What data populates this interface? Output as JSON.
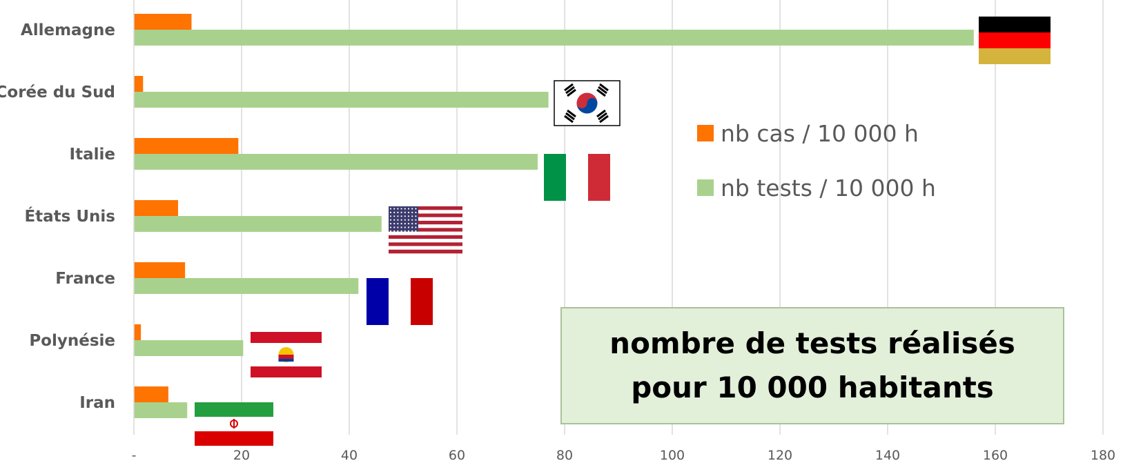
{
  "chart_data": {
    "type": "bar",
    "orientation": "horizontal",
    "categories": [
      "Allemagne",
      "Corée du Sud",
      "Italie",
      "États Unis",
      "France",
      "Polynésie",
      "Iran"
    ],
    "series": [
      {
        "name": "nb cas / 10 000 h",
        "color": "#ff7300",
        "values": [
          10.7,
          1.7,
          19.4,
          8.2,
          9.5,
          1.3,
          6.4
        ]
      },
      {
        "name": "nb tests / 10 000 h",
        "color": "#a9d18e",
        "values": [
          156,
          77,
          75,
          46,
          41.7,
          20.3,
          9.9
        ]
      }
    ],
    "xlim": [
      0,
      180
    ],
    "x_ticks": [
      0,
      20,
      40,
      60,
      80,
      100,
      120,
      140,
      160,
      180
    ],
    "x_tick_labels": [
      "-",
      "20",
      "40",
      "60",
      "80",
      "100",
      "120",
      "140",
      "160",
      "180"
    ],
    "grid": "vertical",
    "legend_position": "right",
    "flags": [
      "germany-flag",
      "south-korea-flag",
      "italy-flag",
      "usa-flag",
      "france-flag",
      "french-polynesia-flag",
      "iran-flag"
    ]
  },
  "callout": {
    "line1": "nombre de tests réalisés",
    "line2": "pour 10 000 habitants"
  }
}
